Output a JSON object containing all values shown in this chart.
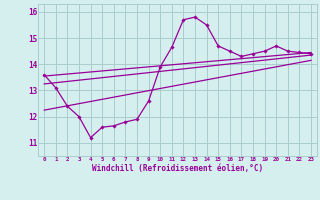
{
  "hours": [
    0,
    1,
    2,
    3,
    4,
    5,
    6,
    7,
    8,
    9,
    10,
    11,
    12,
    13,
    14,
    15,
    16,
    17,
    18,
    19,
    20,
    21,
    22,
    23
  ],
  "windchill": [
    13.6,
    13.1,
    12.4,
    12.0,
    11.2,
    11.6,
    11.65,
    11.8,
    11.9,
    12.6,
    13.9,
    14.65,
    15.7,
    15.8,
    15.5,
    14.7,
    14.5,
    14.3,
    14.4,
    14.5,
    14.7,
    14.5,
    14.45,
    14.4
  ],
  "line1_x": [
    0,
    23
  ],
  "line1_y": [
    13.55,
    14.45
  ],
  "line2_x": [
    0,
    23
  ],
  "line2_y": [
    13.25,
    14.35
  ],
  "line3_x": [
    0,
    23
  ],
  "line3_y": [
    12.25,
    14.15
  ],
  "color": "#990099",
  "bg_color": "#d5efef",
  "grid_color": "#aacccc",
  "xlabel": "Windchill (Refroidissement éolien,°C)",
  "ylim": [
    10.5,
    16.3
  ],
  "xlim": [
    -0.5,
    23.5
  ],
  "yticks": [
    11,
    12,
    13,
    14,
    15,
    16
  ],
  "xticks": [
    0,
    1,
    2,
    3,
    4,
    5,
    6,
    7,
    8,
    9,
    10,
    11,
    12,
    13,
    14,
    15,
    16,
    17,
    18,
    19,
    20,
    21,
    22,
    23
  ]
}
